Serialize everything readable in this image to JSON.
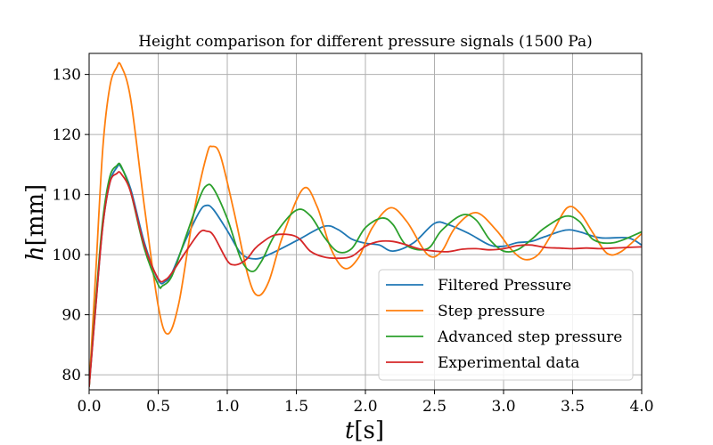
{
  "chart_data": {
    "type": "line",
    "title": "Height comparison for different pressure signals (1500 Pa)",
    "xlabel_var": "t",
    "xlabel_unit": "[s]",
    "ylabel_var": "h",
    "ylabel_unit": "[mm]",
    "xlim": [
      0,
      4
    ],
    "ylim": [
      77.5,
      133.5
    ],
    "xticks": [
      0,
      0.5,
      1,
      1.5,
      2,
      2.5,
      3,
      3.5,
      4
    ],
    "xtick_labels": [
      "0.0",
      "0.5",
      "1.0",
      "1.5",
      "2.0",
      "2.5",
      "3.0",
      "3.5",
      "4.0"
    ],
    "yticks": [
      80,
      90,
      100,
      110,
      120,
      130
    ],
    "ytick_labels": [
      "80",
      "90",
      "100",
      "110",
      "120",
      "130"
    ],
    "grid": true,
    "legend_position": "bottom-right",
    "series": [
      {
        "name": "Filtered Pressure",
        "color": "#1f77b4",
        "x": [
          0,
          0.05,
          0.1,
          0.15,
          0.2,
          0.23,
          0.3,
          0.4,
          0.5,
          0.55,
          0.6,
          0.7,
          0.8,
          0.85,
          0.9,
          1.0,
          1.1,
          1.2,
          1.3,
          1.5,
          1.7,
          1.8,
          1.9,
          2.0,
          2.1,
          2.2,
          2.35,
          2.5,
          2.6,
          2.75,
          2.9,
          3.0,
          3.1,
          3.2,
          3.3,
          3.45,
          3.55,
          3.7,
          3.9,
          4.0
        ],
        "y": [
          78,
          92,
          105,
          112,
          114.5,
          114.6,
          111,
          102,
          95.8,
          95.5,
          97,
          102.5,
          107.2,
          108.2,
          107.5,
          104,
          100.2,
          99.3,
          100,
          102.3,
          104.7,
          104.2,
          102.6,
          101.9,
          101.6,
          100.6,
          102,
          105.2,
          105,
          103.5,
          101.6,
          101.4,
          102,
          102.2,
          103,
          104.1,
          103.8,
          102.8,
          102.8,
          101.6
        ]
      },
      {
        "name": "Step pressure",
        "color": "#ff7f0e",
        "x": [
          0,
          0.05,
          0.1,
          0.15,
          0.2,
          0.23,
          0.3,
          0.4,
          0.5,
          0.57,
          0.65,
          0.75,
          0.85,
          0.89,
          0.95,
          1.05,
          1.15,
          1.22,
          1.3,
          1.4,
          1.55,
          1.65,
          1.75,
          1.85,
          1.95,
          2.05,
          2.18,
          2.3,
          2.45,
          2.55,
          2.65,
          2.8,
          2.95,
          3.05,
          3.15,
          3.25,
          3.35,
          3.46,
          3.55,
          3.65,
          3.75,
          3.85,
          4.0
        ],
        "y": [
          78,
          98,
          118,
          128,
          131.2,
          131.5,
          126,
          108,
          91.5,
          86.8,
          92,
          106,
          116.5,
          118,
          116.5,
          107,
          96.5,
          93.2,
          95.5,
          103,
          111,
          108,
          101,
          97.7,
          99.5,
          104.5,
          107.8,
          105.5,
          100,
          100.5,
          104.5,
          107,
          104,
          101,
          99.2,
          100,
          103.5,
          107.8,
          107,
          103.5,
          100.2,
          100.5,
          103.5
        ]
      },
      {
        "name": "Advanced step pressure",
        "color": "#2ca02c",
        "x": [
          0,
          0.05,
          0.1,
          0.15,
          0.2,
          0.23,
          0.3,
          0.4,
          0.5,
          0.53,
          0.6,
          0.7,
          0.8,
          0.85,
          0.9,
          1.0,
          1.1,
          1.18,
          1.25,
          1.35,
          1.5,
          1.6,
          1.7,
          1.8,
          1.9,
          2.0,
          2.12,
          2.2,
          2.3,
          2.45,
          2.55,
          2.7,
          2.8,
          2.9,
          3.0,
          3.1,
          3.2,
          3.3,
          3.45,
          3.55,
          3.65,
          3.8,
          4.0
        ],
        "y": [
          78,
          93,
          106,
          113,
          114.8,
          114.8,
          110.5,
          101,
          95,
          94.8,
          96.5,
          103,
          109.5,
          111.5,
          111,
          106,
          99.2,
          97.2,
          99,
          103.5,
          107.4,
          106.5,
          103,
          100.5,
          101,
          104.5,
          106.1,
          105,
          101.5,
          101,
          104,
          106.6,
          105.8,
          102.5,
          100.6,
          100.8,
          102.5,
          104.5,
          106.4,
          105.5,
          102.5,
          102,
          103.8
        ]
      },
      {
        "name": "Experimental data",
        "color": "#d62728",
        "x": [
          0,
          0.05,
          0.1,
          0.15,
          0.2,
          0.23,
          0.3,
          0.4,
          0.5,
          0.55,
          0.6,
          0.7,
          0.8,
          0.85,
          0.9,
          1.0,
          1.05,
          1.1,
          1.15,
          1.2,
          1.25,
          1.35,
          1.5,
          1.6,
          1.7,
          1.8,
          1.9,
          2.0,
          2.1,
          2.2,
          2.3,
          2.4,
          2.5,
          2.6,
          2.7,
          2.8,
          2.9,
          3.0,
          3.1,
          3.2,
          3.3,
          3.4,
          3.5,
          3.6,
          3.7,
          3.8,
          3.9,
          4.0
        ],
        "y": [
          78,
          92,
          105,
          112,
          113.5,
          113.5,
          110.5,
          101.5,
          96,
          95.8,
          97,
          100.5,
          103.7,
          103.9,
          103.2,
          99,
          98.3,
          98.6,
          99.5,
          101,
          102,
          103.3,
          103,
          100.6,
          99.6,
          99.4,
          99.7,
          101.4,
          102.2,
          102.2,
          101.6,
          100.9,
          100.6,
          100.5,
          100.9,
          101,
          100.8,
          101,
          101.5,
          101.6,
          101.2,
          101.1,
          101,
          101.1,
          101,
          101.1,
          101.2,
          101.3
        ]
      }
    ]
  }
}
